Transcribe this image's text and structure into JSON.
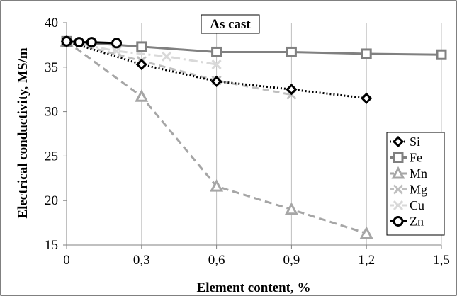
{
  "chart_data": {
    "type": "line",
    "title": "As cast",
    "xlabel": "Element content, %",
    "ylabel": "Electrical conductivity, MS/m",
    "xlim": [
      0,
      1.5
    ],
    "ylim": [
      15,
      40
    ],
    "x_ticks": [
      "0",
      "0,3",
      "0,6",
      "0,9",
      "1,2",
      "1,5"
    ],
    "x_tick_values": [
      0,
      0.3,
      0.6,
      0.9,
      1.2,
      1.5
    ],
    "y_ticks": [
      "15",
      "20",
      "25",
      "30",
      "35",
      "40"
    ],
    "y_tick_values": [
      15,
      20,
      25,
      30,
      35,
      40
    ],
    "grid": "vertical",
    "legend_position": "right",
    "series": [
      {
        "name": "Si",
        "x": [
          0,
          0.3,
          0.6,
          0.9,
          1.2
        ],
        "y": [
          37.9,
          35.3,
          33.4,
          32.5,
          31.5
        ],
        "color": "#000000",
        "line": "dotted",
        "marker": "diamond"
      },
      {
        "name": "Fe",
        "x": [
          0,
          0.3,
          0.6,
          0.9,
          1.2,
          1.5
        ],
        "y": [
          37.9,
          37.3,
          36.7,
          36.7,
          36.5,
          36.4
        ],
        "color": "#808080",
        "line": "solid",
        "marker": "square"
      },
      {
        "name": "Mn",
        "x": [
          0,
          0.3,
          0.6,
          0.9,
          1.2
        ],
        "y": [
          37.9,
          31.7,
          21.6,
          19.0,
          16.3
        ],
        "color": "#a6a6a6",
        "line": "dashed",
        "marker": "triangle"
      },
      {
        "name": "Mg",
        "x": [
          0,
          0.3,
          0.6,
          0.9
        ],
        "y": [
          37.9,
          35.7,
          33.5,
          31.9
        ],
        "color": "#bfbfbf",
        "line": "dash",
        "marker": "x"
      },
      {
        "name": "Cu",
        "x": [
          0,
          0.2,
          0.4,
          0.6
        ],
        "y": [
          37.9,
          36.8,
          36.2,
          35.3
        ],
        "color": "#d9d9d9",
        "line": "dashdot",
        "marker": "x"
      },
      {
        "name": "Zn",
        "x": [
          0,
          0.05,
          0.1,
          0.2
        ],
        "y": [
          37.9,
          37.8,
          37.8,
          37.7
        ],
        "color": "#000000",
        "line": "solid",
        "marker": "circle"
      }
    ]
  }
}
